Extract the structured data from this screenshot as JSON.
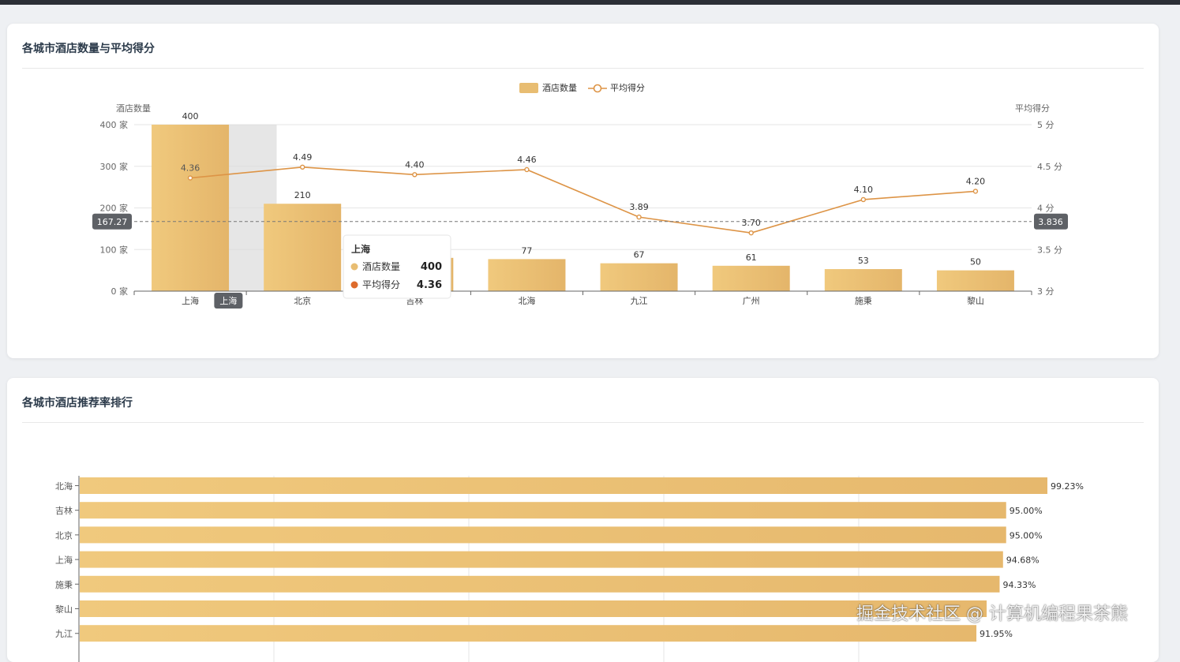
{
  "cards": {
    "hotel_stats_title": "各城市酒店数量与平均得分",
    "recommend_title": "各城市酒店推荐率排行"
  },
  "chart_data": [
    {
      "type": "bar",
      "title": "各城市酒店数量与平均得分",
      "categories": [
        "上海",
        "北京",
        "吉林",
        "北海",
        "九江",
        "广州",
        "施秉",
        "黎山"
      ],
      "legend": {
        "placement": "top-center",
        "entries": [
          "酒店数量",
          "平均得分"
        ]
      },
      "y_left": {
        "name": "酒店数量",
        "unit": "家",
        "range": [
          0,
          400
        ],
        "ticks": [
          "0 家",
          "100 家",
          "200 家",
          "300 家",
          "400 家"
        ]
      },
      "y_right": {
        "name": "平均得分",
        "unit": "分",
        "range": [
          3,
          5
        ],
        "ticks": [
          "3 分",
          "3.5 分",
          "4 分",
          "4.5 分",
          "5 分"
        ]
      },
      "series": [
        {
          "name": "酒店数量",
          "type": "bar",
          "axis": "left",
          "values": [
            400,
            210,
            80,
            77,
            67,
            61,
            53,
            50
          ],
          "labels": [
            "400",
            "210",
            "80",
            "77",
            "67",
            "61",
            "53",
            "50"
          ]
        },
        {
          "name": "平均得分",
          "type": "line",
          "axis": "right",
          "values": [
            4.36,
            4.49,
            4.4,
            4.46,
            3.89,
            3.7,
            4.1,
            4.2
          ],
          "labels": [
            "4.36",
            "4.49",
            "4.40",
            "4.46",
            "3.89",
            "3.70",
            "4.10",
            "4.20"
          ]
        }
      ],
      "crosshair": {
        "left_value_label": "167.27",
        "right_value_label": "3.836",
        "category_label": "上海"
      },
      "tooltip": {
        "title": "上海",
        "rows": [
          {
            "name": "酒店数量",
            "value": "400"
          },
          {
            "name": "平均得分",
            "value": "4.36"
          }
        ]
      },
      "colors": {
        "bar": "#e8bd72",
        "line": "#dd9446",
        "tooltip_dot_1": "#e8bd72",
        "tooltip_dot_2": "#dd6b2c"
      },
      "grid": true
    },
    {
      "type": "bar",
      "orientation": "horizontal",
      "title": "各城市酒店推荐率排行",
      "categories": [
        "北海",
        "吉林",
        "北京",
        "上海",
        "施秉",
        "黎山",
        "九江"
      ],
      "values": [
        99.23,
        95.0,
        95.0,
        94.68,
        94.33,
        93.0,
        91.95
      ],
      "labels": [
        "99.23%",
        "95.00%",
        "95.00%",
        "94.68%",
        "94.33%",
        "",
        "91.95%"
      ],
      "unit": "%",
      "grid": true,
      "colors": {
        "bar": "#e8bd72"
      }
    }
  ],
  "watermark": "掘金技术社区 @ 计算机编程果茶熊"
}
